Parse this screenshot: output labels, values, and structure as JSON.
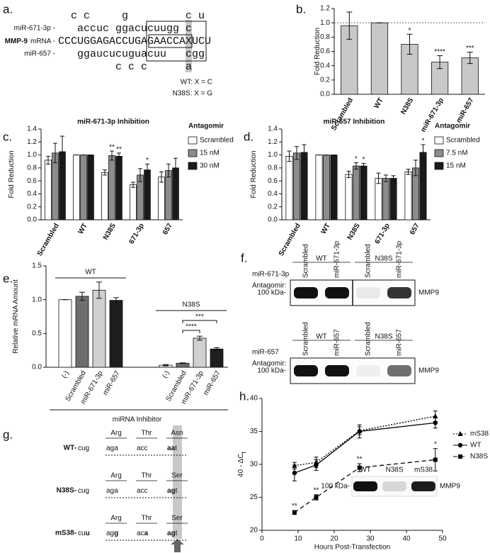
{
  "panel_a": {
    "label": "a.",
    "mir1_label": "miR-671-3p -",
    "mrna_label_bold": "MMP-9",
    "mrna_label": "mRNA -",
    "mir2_label": "miR-657 -",
    "rows": [
      "  c c     g         c u",
      "   accuc ggacucuugg c",
      "CCCUGGAGACCUGAGAACCAXUCU",
      "   ggaucucuguacuu   cgg",
      "         c c c      a"
    ],
    "wt_note": "WT: X = C",
    "n38s_note": "N38S: X = G"
  },
  "chart_data": [
    {
      "type": "bar",
      "label": "b.",
      "ylabel": "Fold Reduction",
      "categories": [
        "Scrambled",
        "WT",
        "N38S",
        "miR-671-3p",
        "miR-657"
      ],
      "values": [
        0.96,
        1.0,
        0.7,
        0.45,
        0.51
      ],
      "errors": [
        0.19,
        0,
        0.14,
        0.09,
        0.08
      ],
      "stars": [
        null,
        null,
        "*",
        "****",
        "***"
      ],
      "color": "#c8c8c8",
      "reference_line": 1.0,
      "ylim": [
        0,
        1.2
      ],
      "yticks": [
        {
          "value": 0,
          "label": "0.0"
        },
        0.2,
        0.4,
        0.6,
        0.8,
        {
          "value": 1,
          "label": "1.0"
        },
        1.2
      ]
    },
    {
      "type": "bar",
      "label": "c.",
      "title": "miR-671-3p Inhibition",
      "ylabel": "Fold Reduction",
      "legend_title": "Antagomir",
      "legend": "right",
      "categories": [
        "Scrambled",
        "WT",
        "N38S",
        "671-3p",
        "657"
      ],
      "series": [
        {
          "name": "Scrambled",
          "color": "#ffffff",
          "values": [
            0.92,
            1.0,
            0.73,
            0.54,
            0.66
          ],
          "errors": [
            0.06,
            0,
            0.04,
            0.04,
            0.08
          ]
        },
        {
          "name": "15 nM",
          "color": "#8c8c8c",
          "values": [
            1.03,
            1.0,
            0.99,
            0.69,
            0.76
          ],
          "errors": [
            0.15,
            0,
            0.07,
            0.1,
            0.1
          ],
          "stars": [
            null,
            null,
            "**",
            null,
            null
          ]
        },
        {
          "name": "30 nM",
          "color": "#1a1a1a",
          "values": [
            1.05,
            1.0,
            0.98,
            0.77,
            0.8
          ],
          "errors": [
            0.24,
            0,
            0.05,
            0.09,
            0.15
          ],
          "stars": [
            null,
            null,
            "**",
            "*",
            null
          ]
        }
      ],
      "ylim": [
        0,
        1.4
      ],
      "yticks": [
        {
          "value": 0,
          "label": "0.0"
        },
        0.2,
        0.4,
        0.6,
        0.8,
        {
          "value": 1,
          "label": "1.0"
        },
        1.2,
        1.4
      ]
    },
    {
      "type": "bar",
      "label": "d.",
      "title": "miR-657 Inhibition",
      "ylabel": "Fold Reduction",
      "legend_title": "Antagomir",
      "legend": "right",
      "categories": [
        "Scrambled",
        "WT",
        "N38S",
        "671-3p",
        "657"
      ],
      "series": [
        {
          "name": "Scrambled",
          "color": "#ffffff",
          "values": [
            0.98,
            1.0,
            0.7,
            0.64,
            0.74
          ],
          "errors": [
            0.08,
            0,
            0.05,
            0.08,
            0.04
          ]
        },
        {
          "name": "7.5 nM",
          "color": "#8c8c8c",
          "values": [
            1.03,
            1.0,
            0.83,
            0.64,
            0.8
          ],
          "errors": [
            0.1,
            0,
            0.05,
            0.05,
            0.12
          ],
          "stars": [
            null,
            null,
            "*",
            null,
            null
          ]
        },
        {
          "name": "15 nM",
          "color": "#1a1a1a",
          "values": [
            1.04,
            1.0,
            0.83,
            0.64,
            1.04
          ],
          "errors": [
            0.12,
            0,
            0.04,
            0.04,
            0.12
          ],
          "stars": [
            null,
            null,
            "*",
            null,
            "*"
          ]
        }
      ],
      "ylim": [
        0,
        1.4
      ],
      "yticks": [
        {
          "value": 0,
          "label": "0.0"
        },
        0.2,
        0.4,
        0.6,
        0.8,
        {
          "value": 1,
          "label": "1.0"
        },
        1.2,
        1.4
      ]
    },
    {
      "type": "bar",
      "label": "e.",
      "ylabel": "Relative mRNA Amount",
      "xlabel": "miRNA Inhibitor",
      "categories": [
        "(-)",
        "Scrambled",
        "miR-671-3p",
        "miR-657"
      ],
      "colors": [
        "#ffffff",
        "#6e6e6e",
        "#d0d0d0",
        "#1e1e1e"
      ],
      "groups": [
        {
          "name": "WT",
          "values": [
            1.0,
            1.05,
            1.14,
            0.99
          ],
          "errors": [
            0,
            0.06,
            0.12,
            0.04
          ]
        },
        {
          "name": "N38S",
          "values": [
            0.03,
            0.06,
            0.43,
            0.27
          ],
          "errors": [
            0.01,
            0.005,
            0.03,
            0.02
          ],
          "comparisons": [
            "****",
            "***"
          ]
        }
      ],
      "ylim": [
        0,
        1.5
      ],
      "yticks": [
        {
          "value": 0,
          "label": "0.0"
        },
        0.5,
        {
          "value": 1,
          "label": "1.0"
        },
        1.5
      ]
    },
    {
      "type": "line",
      "label": "h.",
      "xlabel": "Hours Post-Transfection",
      "ylabel": "40 - ΔC",
      "ylabel_sub": "t",
      "legend": "right",
      "x": [
        9,
        15,
        27,
        48
      ],
      "series": [
        {
          "name": "mS38",
          "color": "#000000",
          "dash": "dotted",
          "marker": "triangle",
          "values": [
            29.8,
            30.3,
            35.1,
            37.3
          ],
          "errors": [
            0.5,
            0.8,
            0.6,
            0.8
          ]
        },
        {
          "name": "WT",
          "color": "#000000",
          "dash": "solid",
          "marker": "circle",
          "values": [
            28.7,
            29.9,
            35.0,
            36.3
          ],
          "errors": [
            1.2,
            0.8,
            1.0,
            0.8
          ]
        },
        {
          "name": "N38S",
          "color": "#000000",
          "dash": "dashed",
          "marker": "square",
          "values": [
            22.7,
            25.0,
            29.5,
            30.7
          ],
          "errors": [
            0.3,
            0.4,
            0.6,
            1.7
          ],
          "stars": [
            "**",
            "**",
            "**",
            "*"
          ]
        }
      ],
      "xlim": [
        0,
        50
      ],
      "xticks": [
        0,
        10,
        20,
        30,
        40,
        50
      ],
      "ylim": [
        20,
        40
      ],
      "yticks": [
        20,
        25,
        30,
        35,
        40
      ],
      "inset": {
        "lanes": [
          "WT",
          "N38S",
          "mS38"
        ],
        "marker": "100 kDa-",
        "band": "MMP9"
      }
    }
  ],
  "panel_f": {
    "label": "f.",
    "blots": [
      {
        "antagomir": [
          "miR-671-3p",
          "Antagomir:"
        ],
        "groups": [
          "WT",
          "N38S"
        ],
        "lanes": [
          "Scrambled",
          "miR-671-3p",
          "Scrambled",
          "miR-671-3p"
        ],
        "marker": "100 kDa-",
        "band": "MMP9"
      },
      {
        "antagomir": [
          "miR-657",
          "Antagomir:"
        ],
        "groups": [
          "WT",
          "N38S"
        ],
        "lanes": [
          "Scrambled",
          "miR-657",
          "Scrambled",
          "miR-657"
        ],
        "marker": "100 kDa-",
        "band": "MMP9"
      }
    ]
  },
  "panel_g": {
    "label": "g.",
    "rows": [
      {
        "name": "WT-",
        "prefix": [
          {
            "text": "cug"
          }
        ],
        "codons": [
          {
            "aa": "Arg",
            "seq": [
              {
                "text": "aga"
              }
            ]
          },
          {
            "aa": "Thr",
            "seq": [
              {
                "text": "acc"
              }
            ]
          },
          {
            "aa": "Asn",
            "seq": [
              {
                "text": "aa",
                "bold": true
              },
              {
                "text": "t"
              }
            ]
          }
        ]
      },
      {
        "name": "N38S-",
        "prefix": [
          {
            "text": "cug"
          }
        ],
        "codons": [
          {
            "aa": "Arg",
            "seq": [
              {
                "text": "aga"
              }
            ]
          },
          {
            "aa": "Thr",
            "seq": [
              {
                "text": "acc"
              }
            ]
          },
          {
            "aa": "Ser",
            "seq": [
              {
                "text": "ag",
                "bold": true
              },
              {
                "text": "t"
              }
            ]
          }
        ]
      },
      {
        "name": "mS38-",
        "prefix": [
          {
            "text": "cu"
          },
          {
            "text": "u",
            "bold": true
          }
        ],
        "codons": [
          {
            "aa": "Arg",
            "seq": [
              {
                "text": "ag"
              },
              {
                "text": "g",
                "bold": true
              }
            ]
          },
          {
            "aa": "Thr",
            "seq": [
              {
                "text": "ac"
              },
              {
                "text": "a",
                "bold": true
              }
            ]
          },
          {
            "aa": "Ser",
            "seq": [
              {
                "text": "ag",
                "bold": true
              },
              {
                "text": "t"
              }
            ]
          }
        ]
      }
    ]
  }
}
